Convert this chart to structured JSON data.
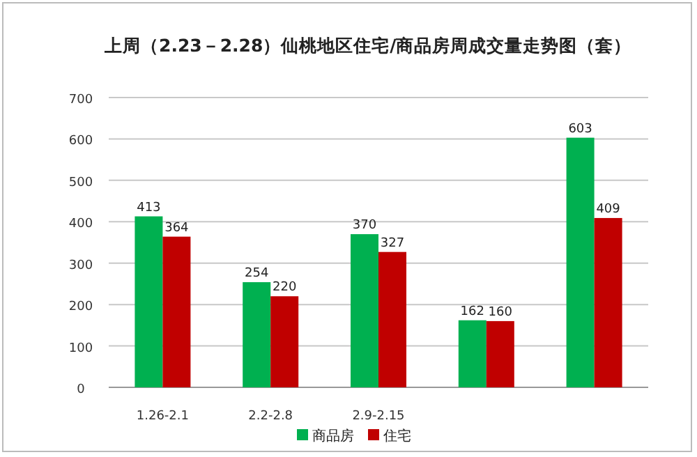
{
  "chart_data": {
    "type": "bar",
    "title": "上周（2.23－2.28）仙桃地区住宅/商品房周成交量走势图（套）",
    "categories": [
      "1.26-2.1",
      "2.2-2.8",
      "2.9-2.15",
      null,
      null
    ],
    "series": [
      {
        "name": "商品房",
        "color": "#00b050",
        "values": [
          413,
          254,
          370,
          162,
          603
        ]
      },
      {
        "name": "住宅",
        "color": "#c00000",
        "values": [
          364,
          220,
          327,
          160,
          409
        ]
      }
    ],
    "ylim": [
      0,
      700
    ],
    "yticks": [
      0,
      100,
      200,
      300,
      400,
      500,
      600,
      700
    ],
    "grid": "y",
    "legend": "bottom",
    "data_labels": true
  }
}
